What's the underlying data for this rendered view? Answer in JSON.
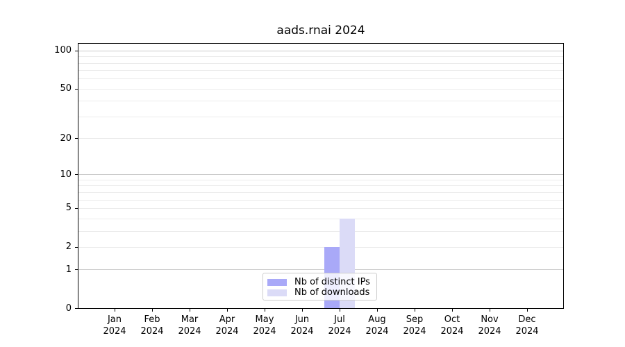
{
  "chart_data": {
    "type": "bar",
    "title": "aads.rnai 2024",
    "x": {
      "months": [
        "Jan",
        "Feb",
        "Mar",
        "Apr",
        "May",
        "Jun",
        "Jul",
        "Aug",
        "Sep",
        "Oct",
        "Nov",
        "Dec"
      ],
      "year": "2024"
    },
    "series": [
      {
        "name": "Nb of distinct IPs",
        "color": "#a9a9f8",
        "values": [
          0,
          0,
          0,
          0,
          0,
          0,
          2,
          0,
          0,
          0,
          0,
          0
        ]
      },
      {
        "name": "Nb of downloads",
        "color": "#dbdbf7",
        "values": [
          0,
          0,
          0,
          0,
          0,
          0,
          4,
          0,
          0,
          0,
          0,
          0
        ]
      }
    ],
    "y_axis": {
      "scale": "log10(1+v)",
      "ylim": [
        0,
        113
      ],
      "ticks": [
        0,
        1,
        2,
        5,
        10,
        20,
        50,
        100
      ],
      "major_gridlines": [
        1,
        10,
        100
      ],
      "minor_gridlines": [
        2,
        3,
        4,
        5,
        6,
        7,
        8,
        9,
        20,
        30,
        40,
        50,
        60,
        70,
        80,
        90
      ]
    },
    "legend": {
      "position": "lower center",
      "entries": [
        {
          "label": "Nb of distinct IPs",
          "color": "#a9a9f8"
        },
        {
          "label": "Nb of downloads",
          "color": "#dbdbf7"
        }
      ]
    },
    "colors": {
      "major_grid": "#c9c9c9",
      "minor_grid": "#ebebeb",
      "spine": "#000000",
      "background": "#ffffff"
    }
  }
}
